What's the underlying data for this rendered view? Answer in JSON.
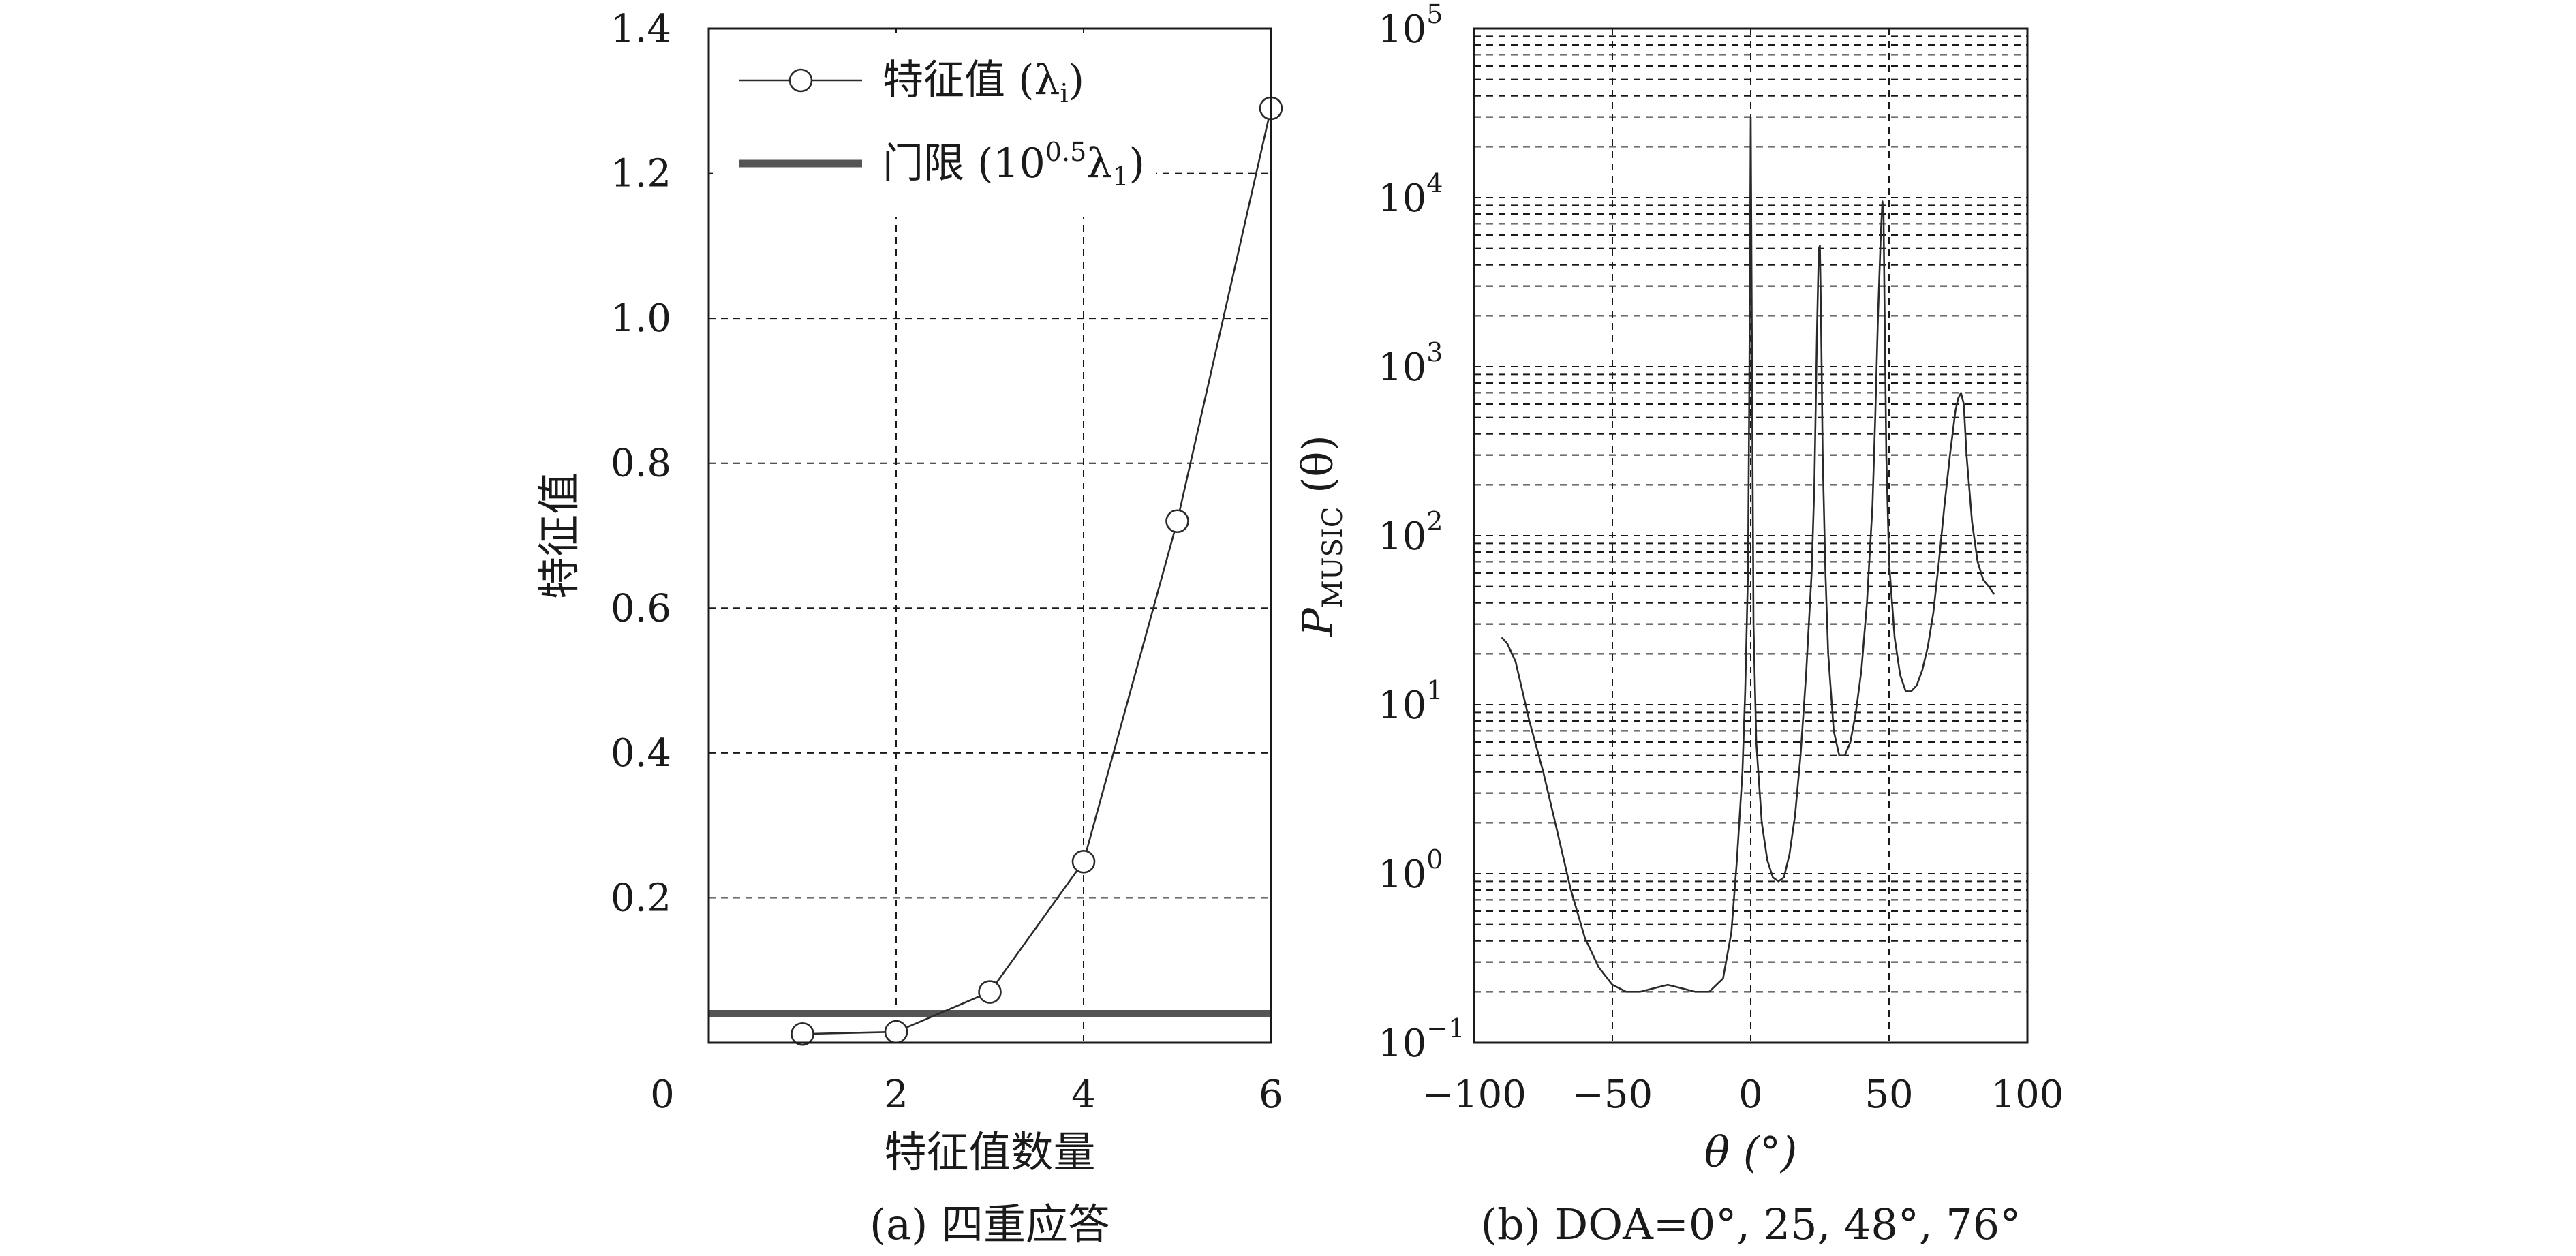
{
  "chart_data": [
    {
      "type": "line",
      "panel": "a",
      "caption": "(a) 四重应答",
      "xlabel": "特征值数量",
      "ylabel": "特征值",
      "xlim": [
        0,
        6
      ],
      "ylim": [
        0,
        1.4
      ],
      "x_ticks": [
        0,
        2,
        4,
        6
      ],
      "x_tick_labels": [
        "0",
        "2",
        "4",
        "6"
      ],
      "y_ticks": [
        0.2,
        0.4,
        0.6,
        0.8,
        1.0,
        1.2,
        1.4
      ],
      "y_tick_labels": [
        "0.2",
        "0.4",
        "0.6",
        "0.8",
        "1.0",
        "1.2",
        "1.4"
      ],
      "grid": true,
      "legend_position": "top-left",
      "series": [
        {
          "name": "特征值 (λi)",
          "marker": "circle",
          "color": "#2a2a2a",
          "x": [
            1,
            2,
            3,
            4,
            5,
            6
          ],
          "y": [
            0.012,
            0.015,
            0.07,
            0.25,
            0.72,
            1.29
          ]
        },
        {
          "name": "门限 (10^0.5 λ1)",
          "color": "#555555",
          "x": [
            0,
            6
          ],
          "y": [
            0.04,
            0.04
          ]
        }
      ],
      "legend": [
        {
          "text": "特征值 (λ",
          "sub": "i",
          "tail": ")"
        },
        {
          "text": "门限 (10",
          "sup": "0.5",
          "mid": "λ",
          "sub": "1",
          "tail": ")"
        }
      ]
    },
    {
      "type": "line",
      "panel": "b",
      "caption": "(b) DOA=0°, 25, 48°, 76°",
      "xlabel": "θ (°)",
      "ylabel": "P_MUSIC (θ)",
      "ylabel_parts": {
        "main": "P",
        "sub": "MUSIC",
        "tail": " (θ)"
      },
      "xlim": [
        -100,
        100
      ],
      "ylim": [
        0.1,
        100000
      ],
      "y_scale": "log",
      "x_ticks": [
        -100,
        -50,
        0,
        50,
        100
      ],
      "x_tick_labels": [
        "−100",
        "−50",
        "0",
        "50",
        "100"
      ],
      "y_tick_labels": [
        {
          "base": "10",
          "exp": "−1"
        },
        {
          "base": "10",
          "exp": "0"
        },
        {
          "base": "10",
          "exp": "1"
        },
        {
          "base": "10",
          "exp": "2"
        },
        {
          "base": "10",
          "exp": "3"
        },
        {
          "base": "10",
          "exp": "4"
        },
        {
          "base": "10",
          "exp": "5"
        }
      ],
      "grid": true,
      "series": [
        {
          "name": "",
          "color": "#2a2a2a",
          "x": [
            -90,
            -88,
            -85,
            -80,
            -75,
            -70,
            -65,
            -60,
            -55,
            -50,
            -45,
            -40,
            -35,
            -30,
            -25,
            -20,
            -15,
            -10,
            -7,
            -5,
            -3,
            -2,
            -1,
            -0.5,
            0,
            0.5,
            1,
            2,
            4,
            6,
            8,
            10,
            12,
            14,
            16,
            18,
            20,
            22,
            23,
            24,
            24.6,
            25,
            25.4,
            26,
            27,
            28,
            30,
            32,
            34,
            36,
            38,
            40,
            42,
            44,
            45,
            46,
            47,
            47.6,
            48,
            48.4,
            49,
            50,
            52,
            54,
            56,
            58,
            60,
            62,
            64,
            66,
            68,
            70,
            72,
            74,
            75,
            76,
            77,
            78,
            80,
            82,
            84,
            86,
            88
          ],
          "y": [
            25,
            23,
            18,
            8,
            4,
            1.8,
            0.8,
            0.42,
            0.28,
            0.22,
            0.2,
            0.2,
            0.21,
            0.22,
            0.21,
            0.2,
            0.2,
            0.24,
            0.45,
            1.2,
            4,
            12,
            60,
            800,
            30000,
            800,
            30,
            6,
            2,
            1.2,
            0.95,
            0.9,
            0.95,
            1.3,
            2.2,
            5,
            15,
            60,
            200,
            1800,
            5000,
            5200,
            2000,
            300,
            60,
            20,
            7,
            5,
            5,
            6,
            9,
            16,
            40,
            150,
            500,
            2000,
            6000,
            9500,
            8000,
            2000,
            300,
            70,
            25,
            15,
            12,
            12,
            13,
            16,
            22,
            35,
            70,
            150,
            300,
            550,
            650,
            700,
            600,
            300,
            120,
            70,
            55,
            50,
            45
          ]
        }
      ]
    }
  ]
}
